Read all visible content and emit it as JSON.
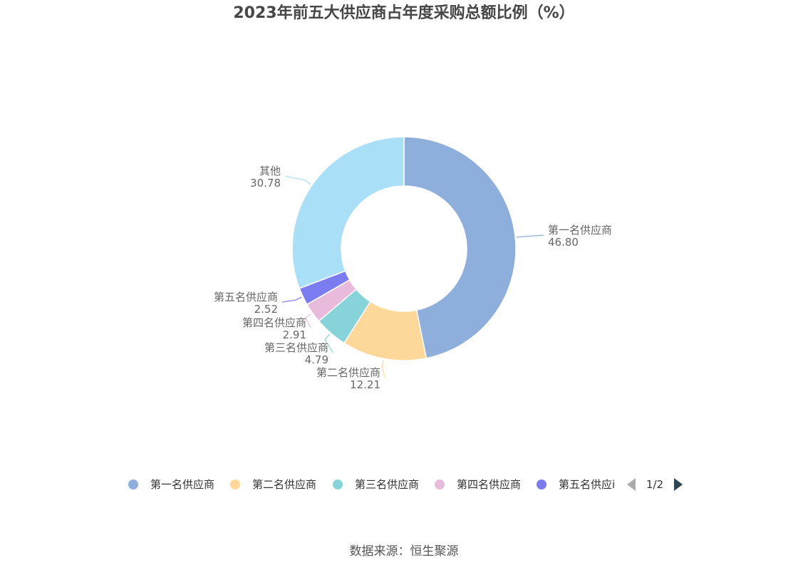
{
  "title": "2023年前五大供应商占年度采购总额比例（%）",
  "source": "数据来源：恒生聚源",
  "chart_data": {
    "type": "pie",
    "donut": true,
    "title": "2023年前五大供应商占年度采购总额比例（%）",
    "labels": [
      "第一名供应商",
      "第二名供应商",
      "第三名供应商",
      "第四名供应商",
      "第五名供应商",
      "其他"
    ],
    "values": [
      46.8,
      12.21,
      4.79,
      2.91,
      2.52,
      30.78
    ],
    "value_labels": [
      "46.80",
      "12.21",
      "4.79",
      "2.91",
      "2.52",
      "30.78"
    ],
    "colors": [
      "#8eaedb",
      "#fdd89a",
      "#86d4d9",
      "#e8bbdc",
      "#7b7cf0",
      "#aadff8"
    ],
    "legend": {
      "position": "bottom",
      "visible_items": [
        "第一名供应商",
        "第二名供应商",
        "第三名供应商",
        "第四名供应商",
        "第五名供应i"
      ],
      "page": "1/2"
    }
  }
}
